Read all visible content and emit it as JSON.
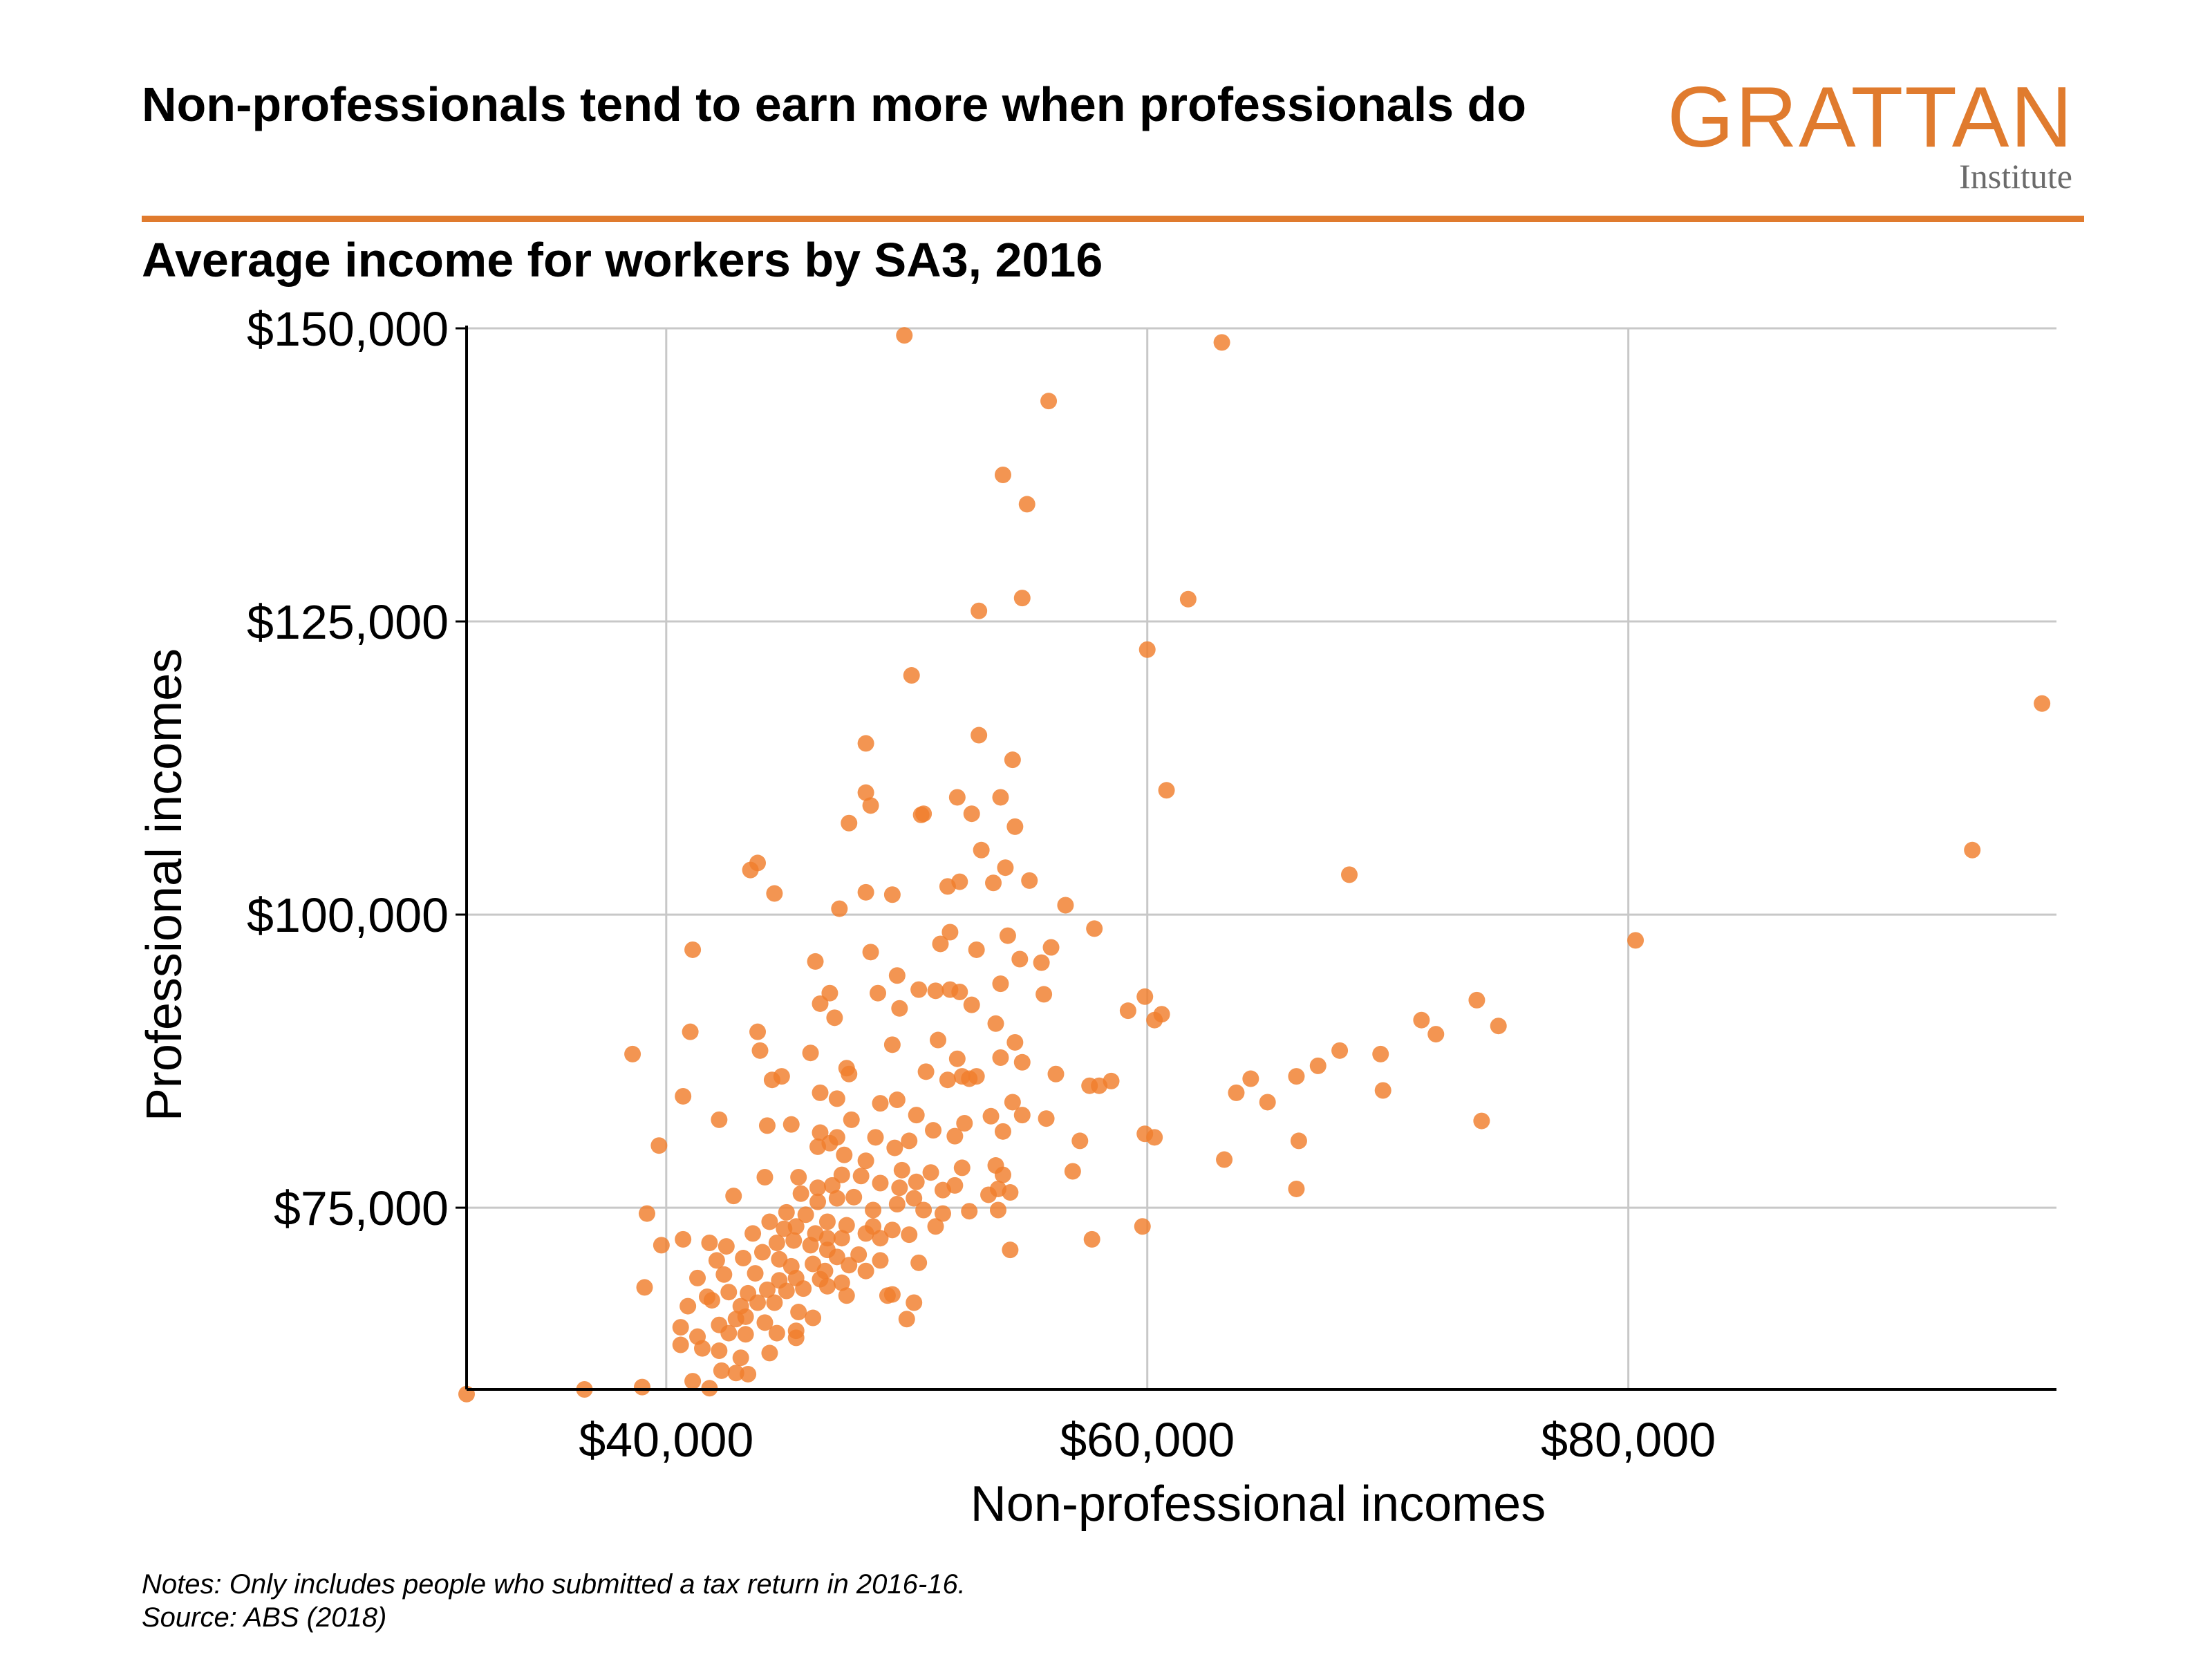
{
  "header": {
    "title": "Non-professionals tend to earn more when professionals do",
    "subtitle": "Average income for workers by SA3, 2016"
  },
  "logo": {
    "main": "GRATTAN",
    "sub": "Institute",
    "color": "#e07b2e"
  },
  "footer": {
    "notes": "Notes: Only includes people who submitted a tax return in 2016-16.",
    "source": "Source: ABS (2018)"
  },
  "chart_data": {
    "type": "scatter",
    "title": "Non-professionals tend to earn more when professionals do",
    "subtitle": "Average income for workers by SA3, 2016",
    "xlabel": "Non-professional incomes",
    "ylabel": "Professional incomes",
    "xlim": [
      31700,
      97800
    ],
    "ylim": [
      59500,
      150000
    ],
    "xticks": [
      40000,
      60000,
      80000
    ],
    "xtick_labels": [
      "$40,000",
      "$60,000",
      "$80,000"
    ],
    "yticks": [
      75000,
      100000,
      125000,
      150000
    ],
    "ytick_labels": [
      "$75,000",
      "$100,000",
      "$125,000",
      "$150,000"
    ],
    "grid": true,
    "color": "#f07e2c",
    "points": [
      [
        49900,
        149400
      ],
      [
        63100,
        148800
      ],
      [
        55900,
        143800
      ],
      [
        54000,
        137500
      ],
      [
        55000,
        135000
      ],
      [
        54800,
        127000
      ],
      [
        61700,
        126900
      ],
      [
        53000,
        125900
      ],
      [
        60000,
        122600
      ],
      [
        50200,
        120400
      ],
      [
        97200,
        118000
      ],
      [
        53000,
        115300
      ],
      [
        48300,
        114600
      ],
      [
        54400,
        113200
      ],
      [
        60800,
        110600
      ],
      [
        48300,
        110400
      ],
      [
        52100,
        110000
      ],
      [
        53900,
        110000
      ],
      [
        48500,
        109300
      ],
      [
        50700,
        108600
      ],
      [
        50600,
        108500
      ],
      [
        52700,
        108600
      ],
      [
        47600,
        107800
      ],
      [
        54500,
        107500
      ],
      [
        94300,
        105500
      ],
      [
        53100,
        105500
      ],
      [
        43800,
        104400
      ],
      [
        43500,
        103800
      ],
      [
        54100,
        104000
      ],
      [
        68400,
        103400
      ],
      [
        52200,
        102800
      ],
      [
        53600,
        102700
      ],
      [
        51700,
        102400
      ],
      [
        55100,
        102900
      ],
      [
        44500,
        101800
      ],
      [
        48300,
        101900
      ],
      [
        49400,
        101700
      ],
      [
        47200,
        100500
      ],
      [
        56600,
        100800
      ],
      [
        57800,
        98800
      ],
      [
        80300,
        97800
      ],
      [
        41100,
        97000
      ],
      [
        54200,
        98200
      ],
      [
        51800,
        98500
      ],
      [
        52900,
        97000
      ],
      [
        51400,
        97500
      ],
      [
        56000,
        97200
      ],
      [
        54700,
        96200
      ],
      [
        55600,
        95900
      ],
      [
        46200,
        96000
      ],
      [
        48500,
        96800
      ],
      [
        49600,
        94800
      ],
      [
        51200,
        93500
      ],
      [
        50500,
        93600
      ],
      [
        51800,
        93600
      ],
      [
        53900,
        94100
      ],
      [
        46800,
        93300
      ],
      [
        46400,
        92400
      ],
      [
        48800,
        93300
      ],
      [
        52200,
        93400
      ],
      [
        55700,
        93200
      ],
      [
        59900,
        93000
      ],
      [
        49700,
        92000
      ],
      [
        52700,
        92300
      ],
      [
        47000,
        91200
      ],
      [
        59200,
        91800
      ],
      [
        60600,
        91500
      ],
      [
        60300,
        91000
      ],
      [
        71400,
        91000
      ],
      [
        73700,
        92700
      ],
      [
        74600,
        90500
      ],
      [
        72000,
        89800
      ],
      [
        41000,
        90000
      ],
      [
        43800,
        90000
      ],
      [
        51300,
        89300
      ],
      [
        53700,
        90700
      ],
      [
        54500,
        89100
      ],
      [
        49400,
        88900
      ],
      [
        68000,
        88400
      ],
      [
        69700,
        88100
      ],
      [
        43900,
        88400
      ],
      [
        46000,
        88200
      ],
      [
        38600,
        88100
      ],
      [
        53900,
        87800
      ],
      [
        54800,
        87400
      ],
      [
        52100,
        87700
      ],
      [
        47500,
        86900
      ],
      [
        52300,
        86200
      ],
      [
        47600,
        86400
      ],
      [
        50800,
        86600
      ],
      [
        51700,
        85900
      ],
      [
        56200,
        86400
      ],
      [
        58500,
        85800
      ],
      [
        57600,
        85400
      ],
      [
        58000,
        85400
      ],
      [
        52600,
        86000
      ],
      [
        52900,
        86200
      ],
      [
        66200,
        86200
      ],
      [
        67100,
        87100
      ],
      [
        64300,
        86000
      ],
      [
        44400,
        85900
      ],
      [
        44800,
        86200
      ],
      [
        40700,
        84500
      ],
      [
        46400,
        84800
      ],
      [
        47100,
        84300
      ],
      [
        48900,
        83900
      ],
      [
        49600,
        84200
      ],
      [
        50400,
        82900
      ],
      [
        53500,
        82800
      ],
      [
        54800,
        82900
      ],
      [
        55800,
        82600
      ],
      [
        63700,
        84800
      ],
      [
        65000,
        84000
      ],
      [
        69800,
        85000
      ],
      [
        73900,
        82400
      ],
      [
        54400,
        84000
      ],
      [
        42200,
        82500
      ],
      [
        44200,
        82000
      ],
      [
        45200,
        82100
      ],
      [
        46400,
        81400
      ],
      [
        47100,
        81000
      ],
      [
        47700,
        82500
      ],
      [
        48700,
        81000
      ],
      [
        49500,
        80100
      ],
      [
        50100,
        80700
      ],
      [
        51100,
        81600
      ],
      [
        52000,
        81100
      ],
      [
        52400,
        82200
      ],
      [
        54000,
        81500
      ],
      [
        57200,
        80700
      ],
      [
        59900,
        81300
      ],
      [
        60300,
        81000
      ],
      [
        66300,
        80700
      ],
      [
        39700,
        80300
      ],
      [
        46300,
        80200
      ],
      [
        46800,
        80500
      ],
      [
        47400,
        79500
      ],
      [
        48300,
        79000
      ],
      [
        49800,
        78200
      ],
      [
        51000,
        78000
      ],
      [
        52300,
        78400
      ],
      [
        53700,
        78600
      ],
      [
        54000,
        77800
      ],
      [
        56900,
        78100
      ],
      [
        63200,
        79100
      ],
      [
        44100,
        77600
      ],
      [
        45500,
        77600
      ],
      [
        46300,
        76700
      ],
      [
        46900,
        76900
      ],
      [
        47300,
        77800
      ],
      [
        48100,
        77700
      ],
      [
        48900,
        77100
      ],
      [
        49700,
        76700
      ],
      [
        50400,
        77200
      ],
      [
        51500,
        76500
      ],
      [
        52000,
        76900
      ],
      [
        53400,
        76100
      ],
      [
        53800,
        76600
      ],
      [
        54300,
        76300
      ],
      [
        66200,
        76600
      ],
      [
        42800,
        76000
      ],
      [
        45600,
        76200
      ],
      [
        46300,
        75500
      ],
      [
        47100,
        75800
      ],
      [
        47800,
        75900
      ],
      [
        48600,
        74800
      ],
      [
        49600,
        75300
      ],
      [
        50300,
        75800
      ],
      [
        50700,
        74800
      ],
      [
        51500,
        74500
      ],
      [
        52600,
        74700
      ],
      [
        53800,
        74800
      ],
      [
        39200,
        74500
      ],
      [
        45000,
        74600
      ],
      [
        45800,
        74400
      ],
      [
        46700,
        73800
      ],
      [
        47500,
        73500
      ],
      [
        48600,
        73400
      ],
      [
        49400,
        73100
      ],
      [
        50100,
        72700
      ],
      [
        51200,
        73400
      ],
      [
        59800,
        73400
      ],
      [
        44300,
        73800
      ],
      [
        44900,
        73200
      ],
      [
        45400,
        73400
      ],
      [
        46200,
        72800
      ],
      [
        46700,
        72400
      ],
      [
        47300,
        72400
      ],
      [
        48300,
        72800
      ],
      [
        48900,
        72400
      ],
      [
        43600,
        72800
      ],
      [
        44600,
        72000
      ],
      [
        45300,
        72200
      ],
      [
        46000,
        71800
      ],
      [
        46700,
        71400
      ],
      [
        47100,
        70800
      ],
      [
        48000,
        71000
      ],
      [
        48900,
        70500
      ],
      [
        50500,
        70300
      ],
      [
        54300,
        71400
      ],
      [
        57700,
        72300
      ],
      [
        39800,
        71800
      ],
      [
        40700,
        72300
      ],
      [
        41800,
        72000
      ],
      [
        42100,
        70500
      ],
      [
        42500,
        71700
      ],
      [
        43200,
        70700
      ],
      [
        44000,
        71200
      ],
      [
        44700,
        70600
      ],
      [
        45200,
        70000
      ],
      [
        46100,
        70200
      ],
      [
        46600,
        69600
      ],
      [
        47600,
        70100
      ],
      [
        48300,
        69600
      ],
      [
        41300,
        69000
      ],
      [
        42400,
        69300
      ],
      [
        43700,
        69400
      ],
      [
        44700,
        68800
      ],
      [
        45400,
        69000
      ],
      [
        46400,
        68900
      ],
      [
        47300,
        68600
      ],
      [
        49200,
        67500
      ],
      [
        39100,
        68200
      ],
      [
        41700,
        67400
      ],
      [
        42600,
        67800
      ],
      [
        43400,
        67700
      ],
      [
        44200,
        68000
      ],
      [
        45000,
        67900
      ],
      [
        45700,
        68100
      ],
      [
        46700,
        68300
      ],
      [
        47500,
        67500
      ],
      [
        49400,
        67600
      ],
      [
        40900,
        66600
      ],
      [
        41900,
        67100
      ],
      [
        43100,
        66600
      ],
      [
        43800,
        66900
      ],
      [
        44500,
        66900
      ],
      [
        45500,
        66100
      ],
      [
        46100,
        65600
      ],
      [
        50300,
        66900
      ],
      [
        42200,
        65000
      ],
      [
        42900,
        65500
      ],
      [
        43300,
        65700
      ],
      [
        44100,
        65200
      ],
      [
        45400,
        64500
      ],
      [
        50000,
        65500
      ],
      [
        40600,
        64800
      ],
      [
        41300,
        64000
      ],
      [
        42600,
        64300
      ],
      [
        43300,
        64200
      ],
      [
        44600,
        64300
      ],
      [
        45400,
        63900
      ],
      [
        40600,
        63300
      ],
      [
        41500,
        63000
      ],
      [
        42200,
        62800
      ],
      [
        43100,
        62200
      ],
      [
        44300,
        62600
      ],
      [
        42300,
        61100
      ],
      [
        43400,
        60800
      ],
      [
        41100,
        60200
      ],
      [
        41800,
        59600
      ],
      [
        39000,
        59700
      ],
      [
        36600,
        59500
      ],
      [
        31700,
        59100
      ],
      [
        42900,
        60900
      ]
    ]
  }
}
